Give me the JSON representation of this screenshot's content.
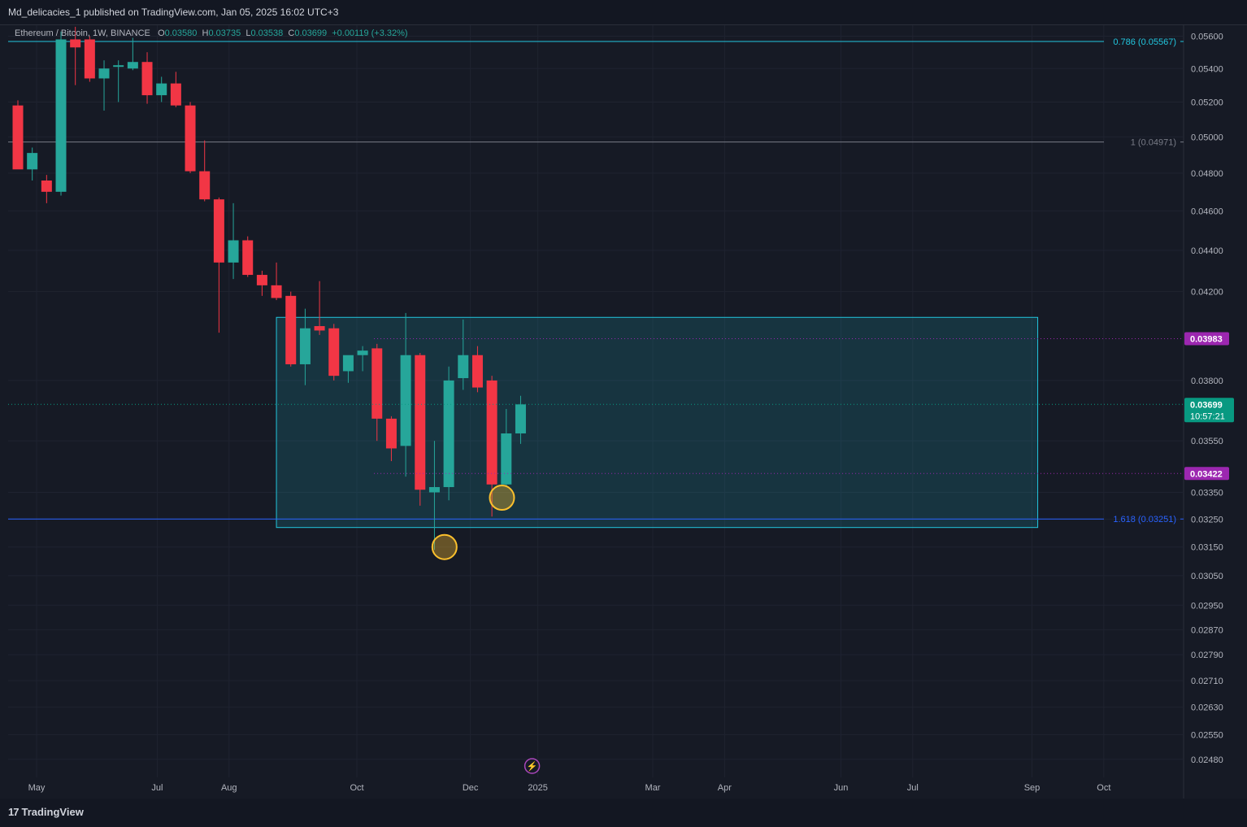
{
  "header": {
    "published": "Md_delicacies_1 published on TradingView.com, Jan 05, 2025 16:02 UTC+3"
  },
  "legend": {
    "symbol": "Ethereum / Bitcoin, 1W, BINANCE",
    "o_label": "O",
    "o": "0.03580",
    "h_label": "H",
    "h": "0.03735",
    "l_label": "L",
    "l": "0.03538",
    "c_label": "C",
    "c": "0.03699",
    "change": "+0.00119 (+3.32%)"
  },
  "footer": {
    "brand": "TradingView",
    "logo_mark": "17"
  },
  "colors": {
    "up": "#26a69a",
    "down": "#f23645",
    "background": "#161a25",
    "fib_0786": "#22c6de",
    "fib_1": "#787b86",
    "fib_1618": "#2962ff",
    "box_border": "#22c6de",
    "marker": "#fbc02d",
    "purple_label": "#9c27b0"
  },
  "chart_data": {
    "type": "candlestick",
    "symbol": "ETHBTC",
    "interval": "1W",
    "ylim": [
      0.0243,
      0.0567
    ],
    "price_ticks": [
      "0.05600",
      "0.05400",
      "0.05200",
      "0.05000",
      "0.04800",
      "0.04600",
      "0.04400",
      "0.04200",
      "0.03800",
      "0.03550",
      "0.03350",
      "0.03250",
      "0.03150",
      "0.03050",
      "0.02950",
      "0.02870",
      "0.02790",
      "0.02710",
      "0.02630",
      "0.02550",
      "0.02480"
    ],
    "hidden_ticks": [
      "0.04000",
      "0.03450"
    ],
    "time_labels": [
      {
        "label": "May",
        "bar": 1.3
      },
      {
        "label": "Jul",
        "bar": 9.7
      },
      {
        "label": "Aug",
        "bar": 14.7
      },
      {
        "label": "Oct",
        "bar": 23.6
      },
      {
        "label": "Dec",
        "bar": 31.5
      },
      {
        "label": "2025",
        "bar": 36.2
      },
      {
        "label": "Mar",
        "bar": 44.2
      },
      {
        "label": "Apr",
        "bar": 49.2
      },
      {
        "label": "Jun",
        "bar": 57.3
      },
      {
        "label": "Jul",
        "bar": 62.3
      },
      {
        "label": "Sep",
        "bar": 70.6
      },
      {
        "label": "Oct",
        "bar": 75.6
      }
    ],
    "candles": [
      {
        "o": 0.0518,
        "h": 0.0521,
        "l": 0.0485,
        "c": 0.0482
      },
      {
        "o": 0.0482,
        "h": 0.0494,
        "l": 0.0476,
        "c": 0.0491
      },
      {
        "o": 0.0476,
        "h": 0.0479,
        "l": 0.0464,
        "c": 0.047
      },
      {
        "o": 0.047,
        "h": 0.0563,
        "l": 0.0468,
        "c": 0.0558
      },
      {
        "o": 0.0558,
        "h": 0.0566,
        "l": 0.053,
        "c": 0.0553
      },
      {
        "o": 0.0558,
        "h": 0.056,
        "l": 0.0532,
        "c": 0.0534
      },
      {
        "o": 0.0534,
        "h": 0.0545,
        "l": 0.0515,
        "c": 0.054
      },
      {
        "o": 0.0541,
        "h": 0.0545,
        "l": 0.052,
        "c": 0.0542
      },
      {
        "o": 0.054,
        "h": 0.0559,
        "l": 0.0539,
        "c": 0.0544
      },
      {
        "o": 0.0544,
        "h": 0.055,
        "l": 0.0519,
        "c": 0.0524
      },
      {
        "o": 0.0524,
        "h": 0.0535,
        "l": 0.052,
        "c": 0.0531
      },
      {
        "o": 0.0531,
        "h": 0.0538,
        "l": 0.0517,
        "c": 0.0518
      },
      {
        "o": 0.0518,
        "h": 0.052,
        "l": 0.048,
        "c": 0.0481
      },
      {
        "o": 0.0481,
        "h": 0.0498,
        "l": 0.0465,
        "c": 0.0466
      },
      {
        "o": 0.0466,
        "h": 0.0467,
        "l": 0.0401,
        "c": 0.0434
      },
      {
        "o": 0.0434,
        "h": 0.0464,
        "l": 0.0426,
        "c": 0.0445
      },
      {
        "o": 0.0445,
        "h": 0.0447,
        "l": 0.0427,
        "c": 0.0428
      },
      {
        "o": 0.0428,
        "h": 0.043,
        "l": 0.0418,
        "c": 0.0423
      },
      {
        "o": 0.0423,
        "h": 0.0434,
        "l": 0.0416,
        "c": 0.0417
      },
      {
        "o": 0.0418,
        "h": 0.042,
        "l": 0.0386,
        "c": 0.0387
      },
      {
        "o": 0.0387,
        "h": 0.0412,
        "l": 0.0378,
        "c": 0.0403
      },
      {
        "o": 0.0404,
        "h": 0.0425,
        "l": 0.04,
        "c": 0.0402
      },
      {
        "o": 0.0403,
        "h": 0.0405,
        "l": 0.038,
        "c": 0.0382
      },
      {
        "o": 0.0384,
        "h": 0.039,
        "l": 0.0379,
        "c": 0.0391
      },
      {
        "o": 0.0391,
        "h": 0.0395,
        "l": 0.0384,
        "c": 0.0393
      },
      {
        "o": 0.0394,
        "h": 0.0396,
        "l": 0.0355,
        "c": 0.0364
      },
      {
        "o": 0.0364,
        "h": 0.0365,
        "l": 0.0347,
        "c": 0.0352
      },
      {
        "o": 0.0353,
        "h": 0.041,
        "l": 0.0341,
        "c": 0.0391
      },
      {
        "o": 0.0391,
        "h": 0.0392,
        "l": 0.033,
        "c": 0.0336
      },
      {
        "o": 0.0335,
        "h": 0.0355,
        "l": 0.0314,
        "c": 0.0337
      },
      {
        "o": 0.0337,
        "h": 0.0386,
        "l": 0.0332,
        "c": 0.038
      },
      {
        "o": 0.0381,
        "h": 0.0407,
        "l": 0.0376,
        "c": 0.0391
      },
      {
        "o": 0.0391,
        "h": 0.0395,
        "l": 0.0375,
        "c": 0.0377
      },
      {
        "o": 0.038,
        "h": 0.0382,
        "l": 0.0326,
        "c": 0.0338
      },
      {
        "o": 0.0338,
        "h": 0.0368,
        "l": 0.0337,
        "c": 0.0358
      },
      {
        "o": 0.0358,
        "h": 0.03735,
        "l": 0.03538,
        "c": 0.03699
      }
    ],
    "fib_levels": [
      {
        "label": "0.786 (0.05567)",
        "value": 0.05567,
        "color": "#22c6de"
      },
      {
        "label": "1 (0.04971)",
        "value": 0.04971,
        "color": "#787b86"
      },
      {
        "label": "1.618 (0.03251)",
        "value": 0.03251,
        "color": "#2962ff"
      }
    ],
    "zone": {
      "start_bar": 18,
      "end_bar": 71,
      "top": 0.0408,
      "bottom": 0.0322
    },
    "price_labels": [
      {
        "text": "0.03983",
        "value": 0.03983,
        "color": "#9c27b0"
      },
      {
        "text": "0.03422",
        "value": 0.03422,
        "color": "#9c27b0"
      }
    ],
    "current": {
      "price": "0.03699",
      "value": 0.03699,
      "countdown": "10:57:21",
      "color": "#089981"
    },
    "circles": [
      {
        "bar": 29.7,
        "value": 0.0315
      },
      {
        "bar": 33.7,
        "value": 0.0333
      }
    ],
    "event_icon": {
      "bar": 35.8,
      "symbol": "⚡"
    }
  }
}
